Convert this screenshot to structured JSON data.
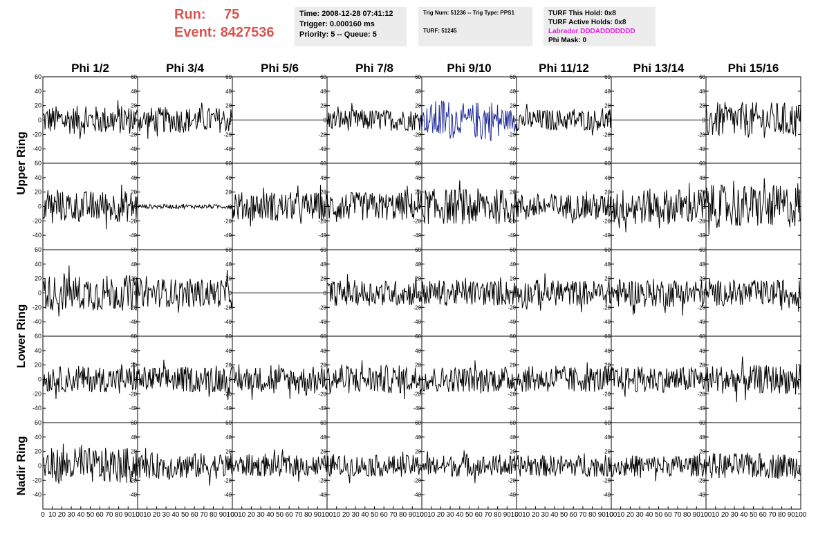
{
  "header": {
    "run_label": "Run:",
    "run_value": "75",
    "event_label": "Event:",
    "event_value": "8427536",
    "time_line": "Time: 2008-12-28 07:41:12",
    "trigger_line": "Trigger: 0.000160 ms",
    "priority_line": "Priority: 5 -- Queue: 5",
    "trig_line": "Trig Num: 51236 -- Trig Type: PPS1",
    "turf_line": "TURF: 51245",
    "hold_line": "TURF This Hold: 0x8",
    "active_line": "TURF Active Holds: 0x8",
    "labrador_line": "Labrador DDDADDDDDDD",
    "phimask_line": "Phi Mask: 0"
  },
  "colors": {
    "run_text": "#d9534f",
    "labrador_text": "#e020e0",
    "trace": "#000000",
    "highlight_trace": "#1f2a99",
    "panel_bg": "#ececec"
  },
  "chart_data": {
    "type": "line",
    "columns": [
      "Phi 1/2",
      "Phi 3/4",
      "Phi 5/6",
      "Phi 7/8",
      "Phi 9/10",
      "Phi 11/12",
      "Phi 13/14",
      "Phi 15/16"
    ],
    "rows": [
      "Upper Ring",
      "Lower Ring",
      "Nadir Ring"
    ],
    "xlim": [
      0,
      100
    ],
    "x_ticks": [
      0,
      10,
      20,
      30,
      40,
      50,
      60,
      70,
      80,
      90,
      100
    ],
    "ylim": [
      -60,
      60
    ],
    "y_ticks": [
      -40,
      -20,
      0,
      20,
      40,
      60
    ],
    "waveform_rows": [
      {
        "ring": "Upper Ring",
        "amplitudes": [
          20,
          18,
          0,
          15,
          30,
          15,
          0,
          25
        ],
        "highlight": [
          false,
          false,
          false,
          false,
          true,
          false,
          false,
          false
        ]
      },
      {
        "ring": "Upper Ring",
        "amplitudes": [
          22,
          3,
          20,
          20,
          25,
          18,
          25,
          30
        ],
        "highlight": [
          false,
          false,
          false,
          false,
          false,
          false,
          false,
          false
        ]
      },
      {
        "ring": "Lower Ring",
        "amplitudes": [
          25,
          20,
          0,
          18,
          18,
          18,
          20,
          18
        ],
        "highlight": [
          false,
          false,
          false,
          false,
          false,
          false,
          false,
          false
        ]
      },
      {
        "ring": "Lower Ring",
        "amplitudes": [
          18,
          18,
          18,
          20,
          18,
          18,
          18,
          20
        ],
        "highlight": [
          false,
          false,
          false,
          false,
          false,
          false,
          false,
          false
        ]
      },
      {
        "ring": "Nadir Ring",
        "amplitudes": [
          25,
          18,
          15,
          15,
          15,
          15,
          15,
          18
        ],
        "highlight": [
          false,
          false,
          false,
          false,
          false,
          false,
          false,
          false
        ]
      }
    ]
  }
}
